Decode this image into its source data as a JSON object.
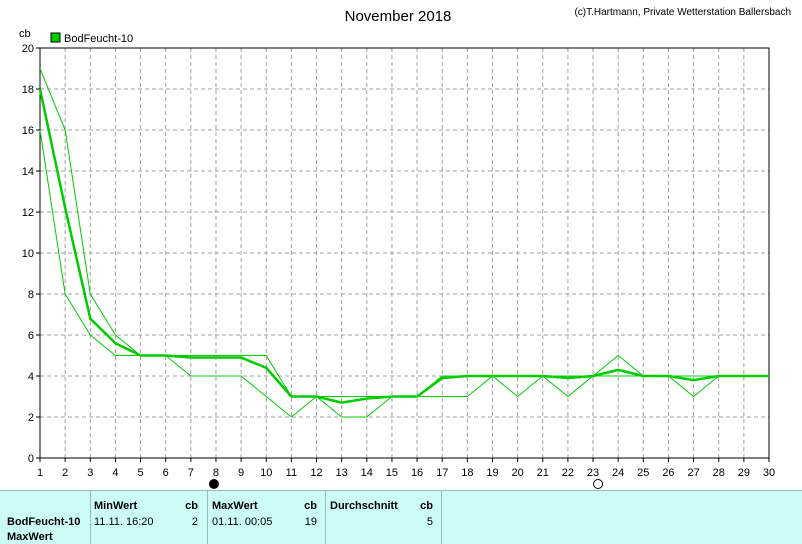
{
  "header": {
    "title": "November 2018",
    "credit": "(c)T.Hartmann, Private Wetterstation Ballersbach"
  },
  "chart_data": {
    "type": "line",
    "title": "November 2018",
    "ylabel": "cb",
    "xlabel": "",
    "xlim": [
      1,
      30
    ],
    "ylim": [
      0,
      20
    ],
    "x_ticks": [
      1,
      2,
      3,
      4,
      5,
      6,
      7,
      8,
      9,
      10,
      11,
      12,
      13,
      14,
      15,
      16,
      17,
      18,
      19,
      20,
      21,
      22,
      23,
      24,
      25,
      26,
      27,
      28,
      29,
      30
    ],
    "y_ticks": [
      0,
      2,
      4,
      6,
      8,
      10,
      12,
      14,
      16,
      18,
      20
    ],
    "grid": true,
    "legend": {
      "position": "top-left",
      "entries": [
        "BodFeucht-10"
      ]
    },
    "color": "#00cc00",
    "x": [
      1,
      2,
      3,
      4,
      5,
      6,
      7,
      8,
      9,
      10,
      11,
      12,
      13,
      14,
      15,
      16,
      17,
      18,
      19,
      20,
      21,
      22,
      23,
      24,
      25,
      26,
      27,
      28,
      29,
      30
    ],
    "series": [
      {
        "name": "BodFeucht-10",
        "role": "average",
        "values": [
          18,
          12.2,
          6.8,
          5.6,
          5,
          5,
          4.9,
          4.9,
          4.9,
          4.4,
          3,
          3,
          2.7,
          2.9,
          3,
          3,
          3.9,
          4,
          4,
          4,
          4,
          3.9,
          4,
          4.3,
          4,
          4,
          3.8,
          4,
          4,
          4
        ]
      },
      {
        "role": "max",
        "values": [
          19,
          16,
          8,
          6,
          5,
          5,
          5,
          5,
          5,
          5,
          3,
          3,
          3,
          3,
          3,
          3,
          4,
          4,
          4,
          4,
          4,
          4,
          4,
          5,
          4,
          4,
          4,
          4,
          4,
          4
        ]
      },
      {
        "role": "min",
        "values": [
          16,
          8,
          6,
          5,
          5,
          5,
          4,
          4,
          4,
          3,
          2,
          3,
          2,
          2,
          3,
          3,
          3,
          3,
          4,
          3,
          4,
          3,
          4,
          4,
          4,
          4,
          3,
          4,
          4,
          4
        ]
      }
    ],
    "markers": [
      {
        "x": 7.92,
        "symbol": "filled-circle"
      },
      {
        "x": 23.2,
        "symbol": "open-circle"
      }
    ]
  },
  "stats": {
    "row_name": "BodFeucht-10",
    "row_name2": "MaxWert",
    "min_header": "MinWert",
    "min_unit": "cb",
    "min_time": "11.11.  16:20",
    "min_value": "2",
    "max_header": "MaxWert",
    "max_unit": "cb",
    "max_time": "01.11.  00:05",
    "max_value": "19",
    "avg_header": "Durchschnitt",
    "avg_unit": "cb",
    "avg_value": "5"
  }
}
